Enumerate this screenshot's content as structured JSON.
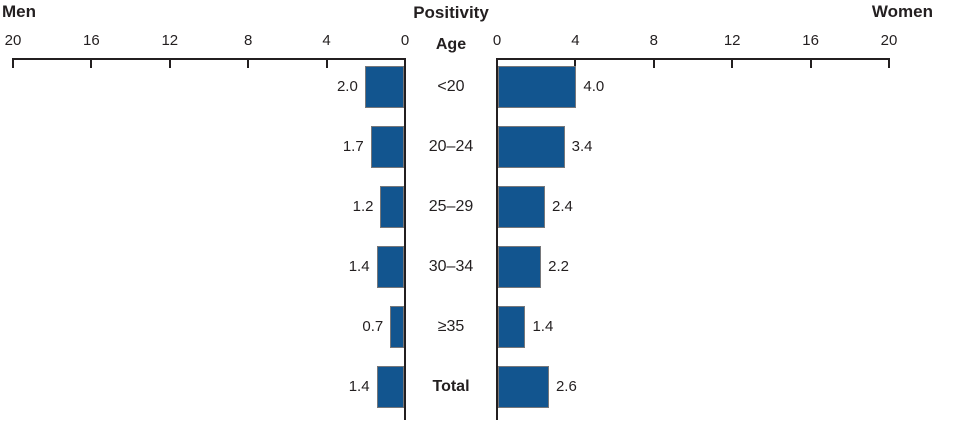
{
  "title": "Positivity",
  "left_header": "Men",
  "right_header": "Women",
  "center_header": "Age",
  "colors": {
    "bar_fill": "#12558f",
    "bar_border": "#76777a",
    "axis": "#231f20",
    "text": "#231f20"
  },
  "chart_data": {
    "type": "bar",
    "subtype": "pyramid-horizontal",
    "title": "Positivity",
    "center_axis_label": "Age",
    "categories": [
      {
        "label": "<20",
        "bold": false
      },
      {
        "label": "20–24",
        "bold": false
      },
      {
        "label": "25–29",
        "bold": false
      },
      {
        "label": "30–34",
        "bold": false
      },
      {
        "label": "≥35",
        "bold": false
      },
      {
        "label": "Total",
        "bold": true
      }
    ],
    "series": [
      {
        "name": "Men",
        "side": "left",
        "values": [
          2.0,
          1.7,
          1.2,
          1.4,
          0.7,
          1.4
        ],
        "value_labels": [
          "2.0",
          "1.7",
          "1.2",
          "1.4",
          "0.7",
          "1.4"
        ]
      },
      {
        "name": "Women",
        "side": "right",
        "values": [
          4.0,
          3.4,
          2.4,
          2.2,
          1.4,
          2.6
        ],
        "value_labels": [
          "4.0",
          "3.4",
          "2.4",
          "2.2",
          "1.4",
          "2.6"
        ]
      }
    ],
    "axis_ticks": [
      0,
      4,
      8,
      12,
      16,
      20
    ],
    "xlim": [
      0,
      20
    ],
    "grid": false,
    "legend": false,
    "bar_color": "#12558f"
  }
}
